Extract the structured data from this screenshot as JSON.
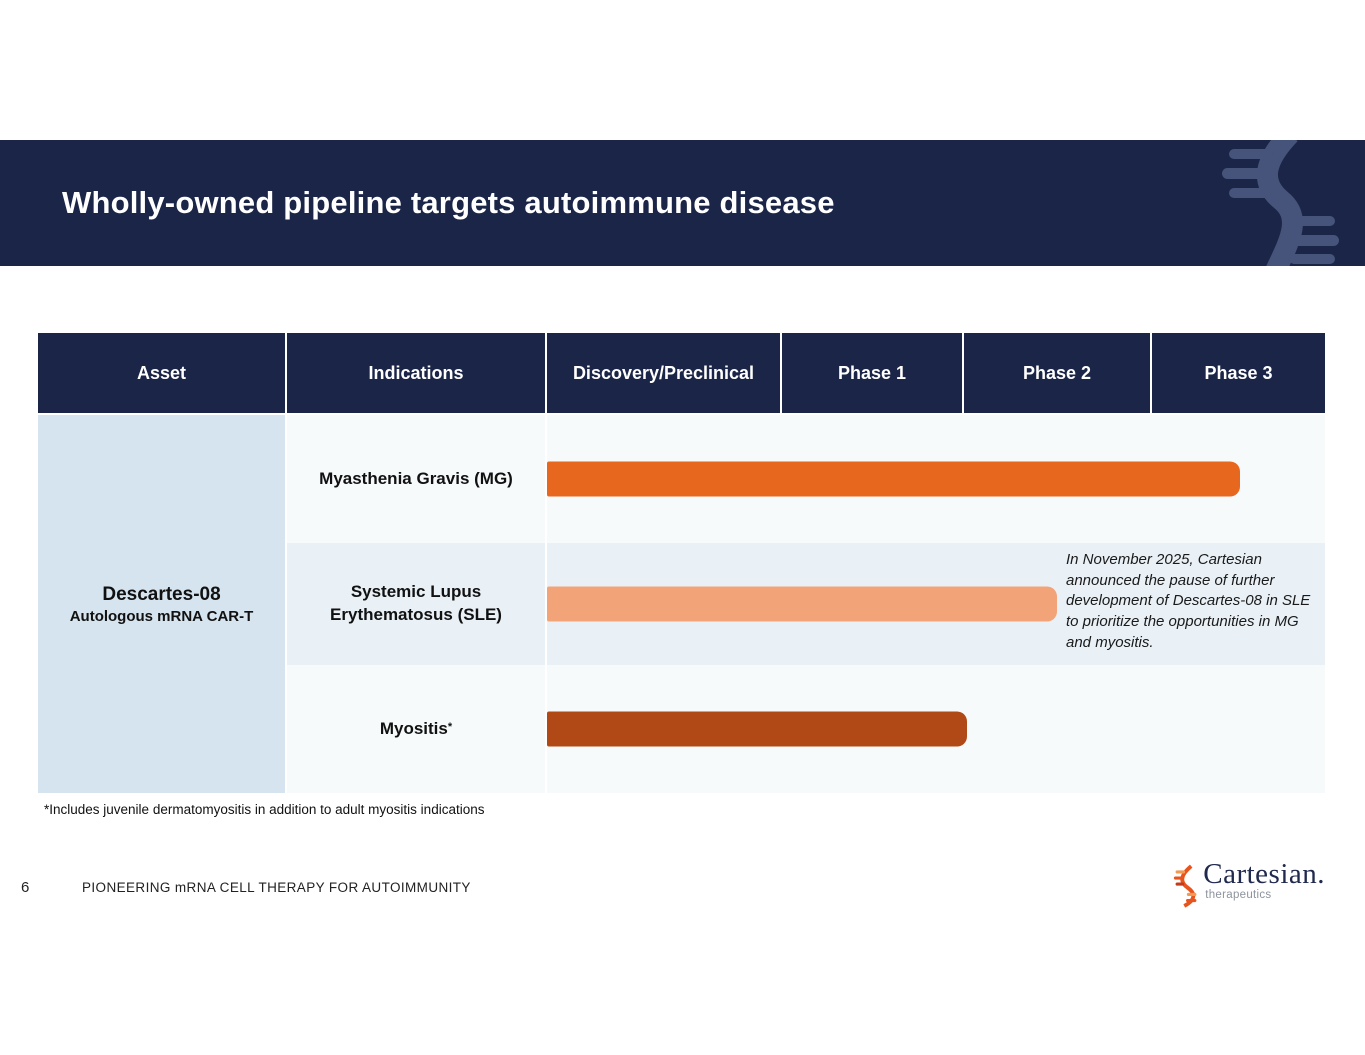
{
  "slide": {
    "title": "Wholly-owned pipeline targets autoimmune disease",
    "footnote": "*Includes juvenile dermatomyositis in addition to adult myositis indications",
    "page_number": "6",
    "footer_tagline": "PIONEERING mRNA CELL THERAPY FOR AUTOIMMUNITY"
  },
  "logo": {
    "wordmark": "Cartesian.",
    "subtext": "therapeutics"
  },
  "colors": {
    "navy_band": "#1b2547",
    "asset_cell_bg": "#d5e4ee",
    "row_light_bg": "#f6fafb",
    "row_tint_bg": "#e9f1f7",
    "mg_bar": "#e8671f",
    "sle_bar": "#f2a377",
    "myositis_bar": "#b04916",
    "logo_orange": "#e8541e"
  },
  "chart_data": {
    "type": "bar",
    "title": "Wholly-owned pipeline targets autoimmune disease",
    "columns": [
      "Asset",
      "Indications",
      "Discovery/Preclinical",
      "Phase 1",
      "Phase 2",
      "Phase 3"
    ],
    "asset": {
      "name": "Descartes-08",
      "subtitle": "Autologous mRNA CAR-T"
    },
    "timeline_stages": [
      "Discovery/Preclinical",
      "Phase 1",
      "Phase 2",
      "Phase 3"
    ],
    "rows": [
      {
        "indication": "Myasthenia Gravis (MG)",
        "marker": "",
        "stage_reached": "Phase 3",
        "bar_pct": 89.1,
        "color": "#e8671f",
        "annotation": ""
      },
      {
        "indication": "Systemic Lupus Erythematosus (SLE)",
        "marker": "",
        "stage_reached": "Phase 2",
        "bar_pct": 65.6,
        "color": "#f2a377",
        "annotation": "In November 2025, Cartesian announced the pause of further development of Descartes-08 in SLE to prioritize the opportunities in MG and myositis."
      },
      {
        "indication": "Myositis",
        "marker": "*",
        "stage_reached": "Phase 2",
        "bar_pct": 54.0,
        "color": "#b04916",
        "annotation": ""
      }
    ]
  }
}
